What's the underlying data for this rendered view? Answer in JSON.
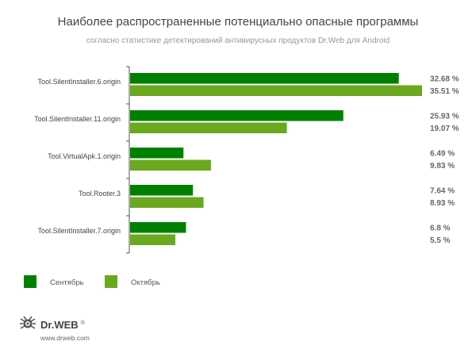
{
  "chart_data": {
    "type": "bar",
    "orientation": "horizontal",
    "title": "Наиболее распространенные потенциально опасные программы",
    "subtitle": "согласно статистике детектирований антивирусных продуктов Dr.Web для Android",
    "categories": [
      "Tool.SilentInstaller.6.origin",
      "Tool.SilentInstaller.11.origin",
      "Tool.VirtualApk.1.origin",
      "Tool.Rooter.3",
      "Tool.SilentInstaller.7.origin"
    ],
    "series": [
      {
        "name": "Сентябрь",
        "color": "#008000",
        "values": [
          32.68,
          25.93,
          6.49,
          7.64,
          6.8
        ],
        "labels": [
          "32.68 %",
          "25.93 %",
          "6.49 %",
          "7.64 %",
          "6.8 %"
        ]
      },
      {
        "name": "Октябрь",
        "color": "#6aa81e",
        "values": [
          35.51,
          19.07,
          9.83,
          8.93,
          5.5
        ],
        "labels": [
          "35.51 %",
          "19.07 %",
          "9.83 %",
          "8.93 %",
          "5.5 %"
        ]
      }
    ],
    "xlim": [
      0,
      36
    ],
    "grid": false,
    "legend": "bottom-left"
  },
  "logo": {
    "name": "Dr.WEB",
    "mark": "®",
    "url": "www.drweb.com"
  }
}
